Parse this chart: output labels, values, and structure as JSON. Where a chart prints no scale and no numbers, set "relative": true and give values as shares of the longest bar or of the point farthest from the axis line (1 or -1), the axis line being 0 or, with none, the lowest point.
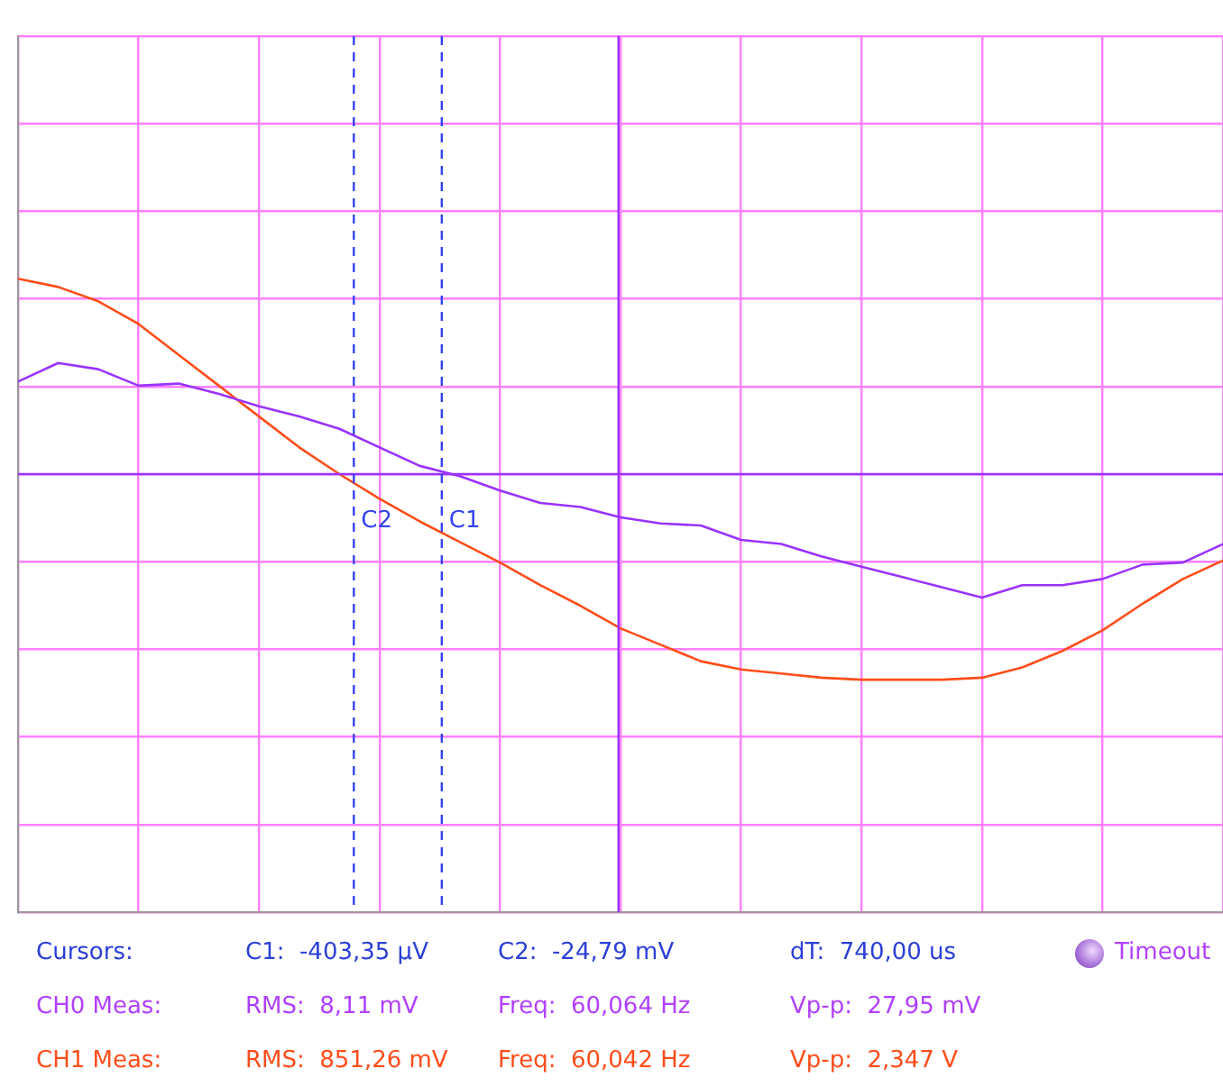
{
  "chart_data": {
    "type": "line",
    "relative": true,
    "grid": true,
    "marker": "none",
    "line_style": "solid",
    "categories": [
      null,
      null,
      null,
      null,
      null,
      null,
      null,
      null,
      null,
      null,
      null,
      null,
      null,
      null,
      null,
      null,
      null,
      null,
      null,
      null,
      null,
      null,
      null,
      null,
      null,
      null,
      null,
      null,
      null,
      null,
      null
    ],
    "series": [
      {
        "color": "#9933ff",
        "values": [
          0.45,
          0.54,
          0.51,
          0.43,
          0.44,
          0.39,
          0.33,
          0.28,
          0.22,
          0.13,
          0.04,
          -0.01,
          -0.08,
          -0.14,
          -0.16,
          -0.21,
          -0.24,
          -0.25,
          -0.32,
          -0.34,
          -0.4,
          -0.45,
          -0.5,
          -0.55,
          -0.6,
          -0.54,
          -0.54,
          -0.51,
          -0.44,
          -0.43,
          -0.34
        ]
      },
      {
        "color": "#ff4d1a",
        "values": [
          0.95,
          0.91,
          0.84,
          0.73,
          0.58,
          0.43,
          0.28,
          0.13,
          0,
          -0.12,
          -0.23,
          -0.33,
          -0.43,
          -0.54,
          -0.64,
          -0.75,
          -0.83,
          -0.91,
          -0.95,
          -0.97,
          -0.99,
          -1,
          -1,
          -1,
          -0.99,
          -0.94,
          -0.86,
          -0.76,
          -0.63,
          -0.51,
          -0.42
        ]
      }
    ],
    "ref_lines": [
      {
        "axis": "y",
        "value": 0,
        "label": null,
        "color": "#9933ff",
        "line_style": "solid"
      }
    ],
    "annotations": [
      "C2",
      "C1",
      "Cursors:",
      "C1:  -403,35 µV",
      "C2:  -24,79 mV",
      "dT:  740,00 us",
      "CH0 Meas:",
      "RMS:  8,11 mV",
      "Freq:  60,064 Hz",
      "Vp-p:  27,95 mV",
      "CH1 Meas:",
      "RMS:  851,26 mV",
      "Freq:  60,042 Hz",
      "Vp-p:  2,347 V",
      "Timeout"
    ]
  }
}
